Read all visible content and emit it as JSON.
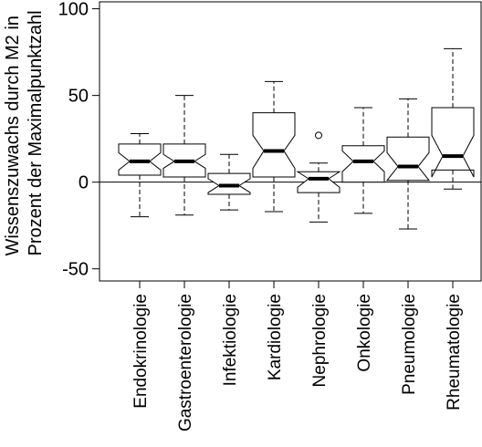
{
  "chart_data": {
    "type": "boxplot",
    "title": "",
    "ylabel_lines": [
      "Wissenszuwachs durch M2 in",
      "Prozent der Maximalpunktzahl"
    ],
    "xlabel": "",
    "ylim": [
      -57,
      104
    ],
    "yticks": [
      -50,
      0,
      50,
      100
    ],
    "reference_line": 0,
    "notched": true,
    "categories": [
      "Endokrinologie",
      "Gastroenterologie",
      "Infektiologie",
      "Kardiologie",
      "Nephrologie",
      "Onkologie",
      "Pneumologie",
      "Rheumatologie"
    ],
    "boxes": [
      {
        "category": "Endokrinologie",
        "whisker_low": -20,
        "q1": 4,
        "median": 12,
        "q3": 22,
        "whisker_high": 28,
        "notch_low": 7,
        "notch_high": 17,
        "outliers": []
      },
      {
        "category": "Gastroenterologie",
        "whisker_low": -19,
        "q1": 3,
        "median": 12,
        "q3": 22,
        "whisker_high": 50,
        "notch_low": 8,
        "notch_high": 16,
        "outliers": []
      },
      {
        "category": "Infektiologie",
        "whisker_low": -16,
        "q1": -7,
        "median": -2,
        "q3": 5,
        "whisker_high": 16,
        "notch_low": -6,
        "notch_high": 2,
        "outliers": []
      },
      {
        "category": "Kardiologie",
        "whisker_low": -17,
        "q1": 3,
        "median": 18,
        "q3": 40,
        "whisker_high": 58,
        "notch_low": 8,
        "notch_high": 27,
        "outliers": []
      },
      {
        "category": "Nephrologie",
        "whisker_low": -23,
        "q1": -6,
        "median": 2,
        "q3": 6,
        "whisker_high": 11,
        "notch_low": -3,
        "notch_high": 6,
        "outliers": [
          27
        ]
      },
      {
        "category": "Onkologie",
        "whisker_low": -18,
        "q1": 0,
        "median": 12,
        "q3": 21,
        "whisker_high": 43,
        "notch_low": 6,
        "notch_high": 18,
        "outliers": []
      },
      {
        "category": "Pneumologie",
        "whisker_low": -27,
        "q1": 1,
        "median": 9,
        "q3": 26,
        "whisker_high": 48,
        "notch_low": 1,
        "notch_high": 17,
        "outliers": []
      },
      {
        "category": "Rheumatologie",
        "whisker_low": -4,
        "q1": 7,
        "median": 15,
        "q3": 43,
        "whisker_high": 77,
        "notch_low": 3,
        "notch_high": 27,
        "outliers": []
      }
    ],
    "grid": false,
    "legend": "none",
    "colors": {
      "line": "#000000",
      "box_fill": "#ffffff",
      "background": "#ffffff"
    }
  }
}
